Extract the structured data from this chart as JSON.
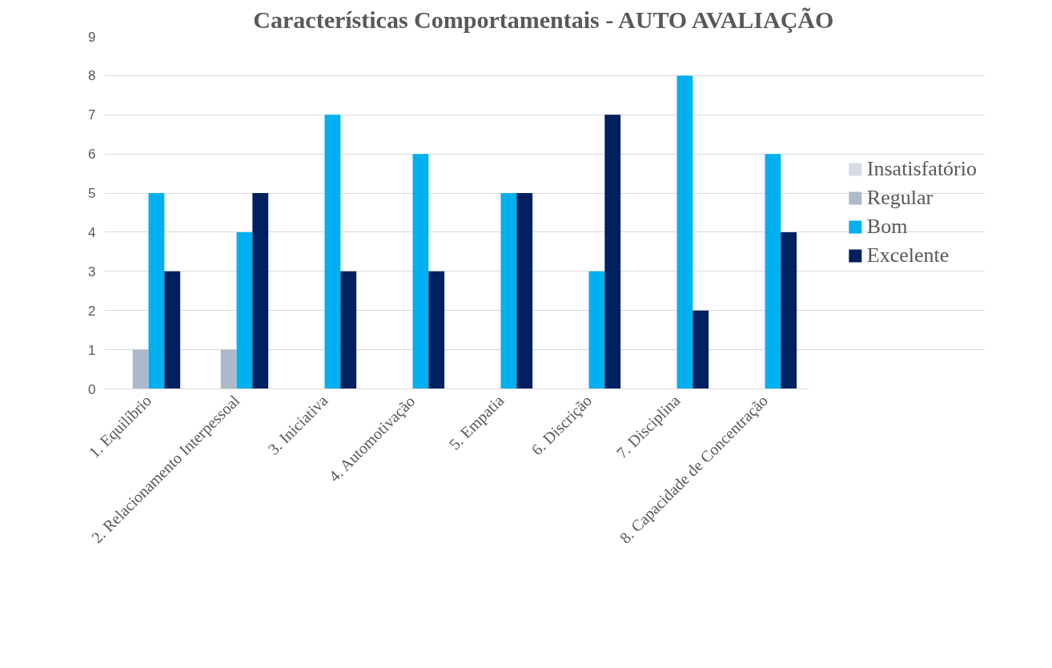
{
  "chart_data": {
    "type": "bar",
    "title": "Características Comportamentais - AUTO AVALIAÇÃO",
    "categories": [
      "1. Equilíbrio",
      "2. Relacionamento Interpessoal",
      "3. Iniciativa",
      "4. Automotivação",
      "5. Empatia",
      "6. Discrição",
      "7. Disciplina",
      "8. Capacidade de Concentração"
    ],
    "series": [
      {
        "name": "Insatisfatório",
        "color": "#d6dce5",
        "values": [
          0,
          0,
          0,
          0,
          0,
          0,
          0,
          0
        ]
      },
      {
        "name": "Regular",
        "color": "#adb9ca",
        "values": [
          1,
          1,
          0,
          0,
          0,
          0,
          0,
          0
        ]
      },
      {
        "name": "Bom",
        "color": "#00b0f0",
        "values": [
          5,
          4,
          7,
          6,
          5,
          3,
          8,
          6
        ]
      },
      {
        "name": "Excelente",
        "color": "#002060",
        "values": [
          3,
          5,
          3,
          3,
          5,
          7,
          2,
          4
        ]
      }
    ],
    "ylim": [
      0,
      9
    ],
    "yticks": [
      0,
      1,
      2,
      3,
      4,
      5,
      6,
      7,
      8,
      9
    ],
    "grid": "y",
    "legend": "right"
  }
}
